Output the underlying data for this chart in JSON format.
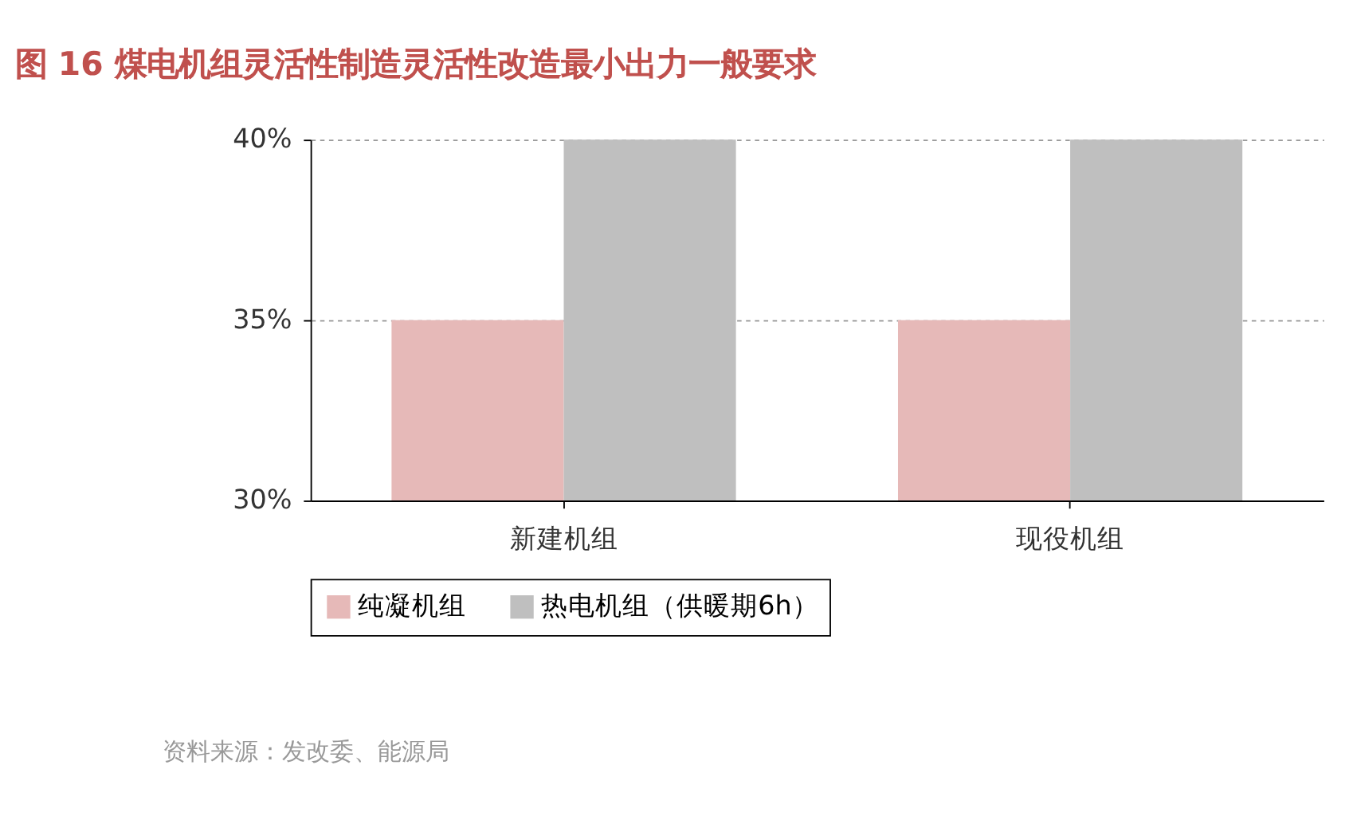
{
  "chart_data": {
    "type": "bar",
    "title": "图 16 煤电机组灵活性制造灵活性改造最小出力一般要求",
    "categories": [
      "新建机组",
      "现役机组"
    ],
    "series": [
      {
        "name": "纯凝机组",
        "color": "#e6b9b8",
        "values": [
          35,
          35
        ]
      },
      {
        "name": "热电机组（供暖期6h）",
        "color": "#bfbfbf",
        "values": [
          40,
          40
        ]
      }
    ],
    "ylim": [
      30,
      40
    ],
    "yticks": [
      {
        "value": 30,
        "label": "30%"
      },
      {
        "value": 35,
        "label": "35%"
      },
      {
        "value": 40,
        "label": "40%"
      }
    ],
    "grid": "y",
    "legend": "bottom",
    "annotations": [
      "资料来源：发改委、能源局"
    ]
  }
}
